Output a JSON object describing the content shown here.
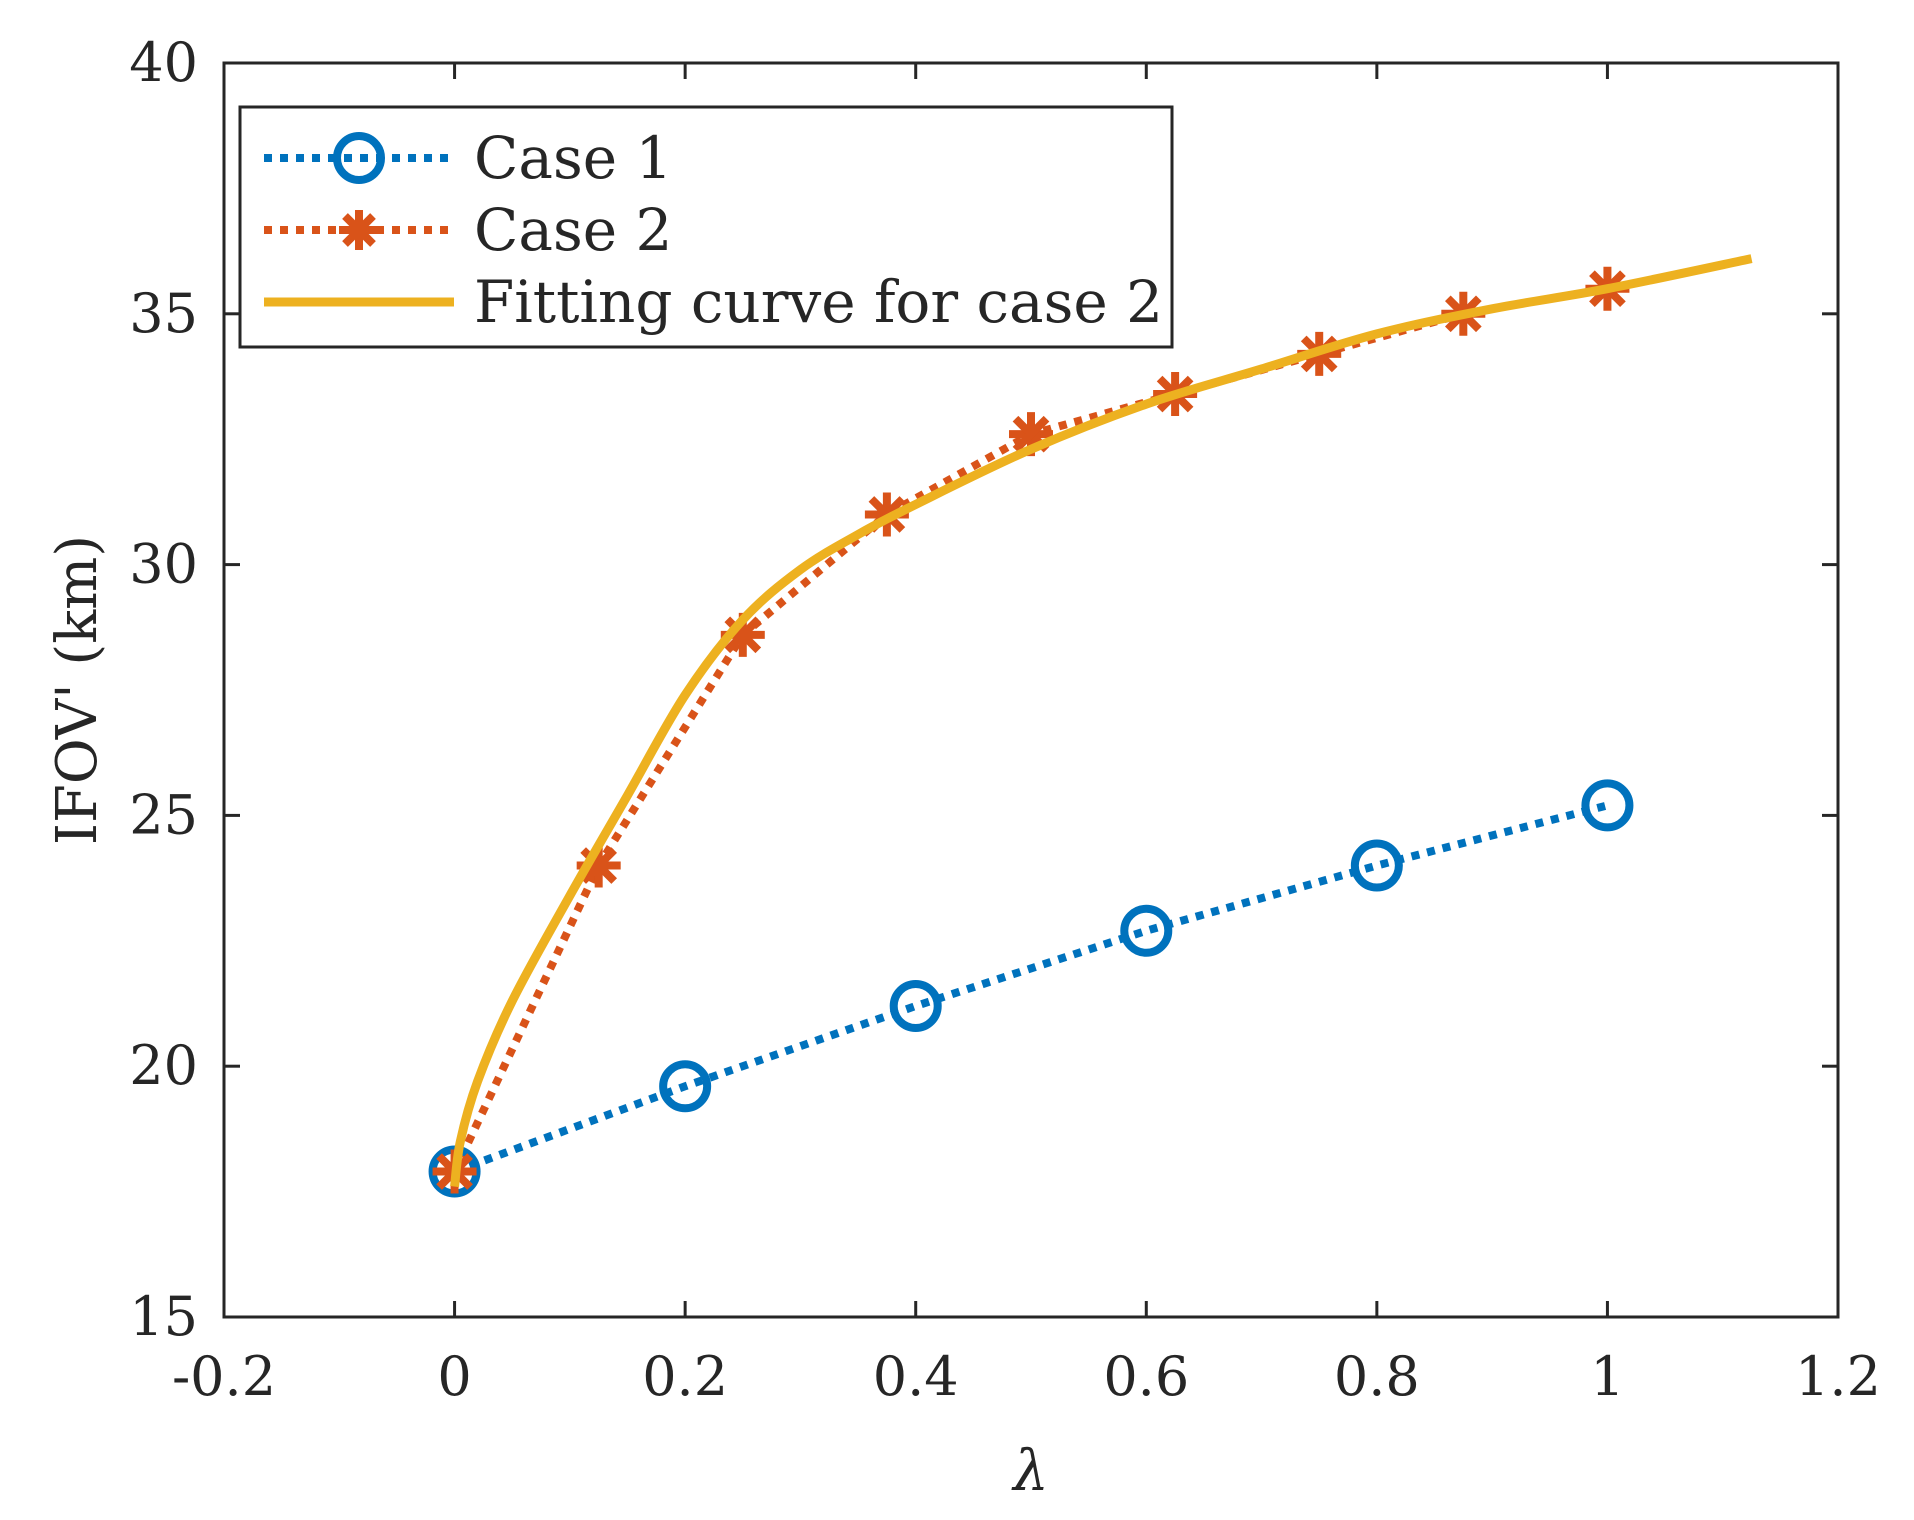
{
  "chart_data": {
    "type": "line",
    "title": "",
    "xlabel": "λ",
    "ylabel": "IFOV' (km)",
    "xlim": [
      -0.2,
      1.2
    ],
    "ylim": [
      15,
      40
    ],
    "xticks": [
      -0.2,
      0,
      0.2,
      0.4,
      0.6,
      0.8,
      1,
      1.2
    ],
    "xtick_labels": [
      "-0.2",
      "0",
      "0.2",
      "0.4",
      "0.6",
      "0.8",
      "1",
      "1.2"
    ],
    "yticks": [
      15,
      20,
      25,
      30,
      35,
      40
    ],
    "ytick_labels": [
      "15",
      "20",
      "25",
      "30",
      "35",
      "40"
    ],
    "grid": false,
    "legend_position": "top-left",
    "series": [
      {
        "name": "Case 1",
        "style": "dotted",
        "marker": "circle",
        "color": "#0072BD",
        "x": [
          0,
          0.2,
          0.4,
          0.6,
          0.8,
          1
        ],
        "y": [
          17.9,
          19.6,
          21.2,
          22.7,
          24.0,
          25.2
        ]
      },
      {
        "name": "Case 2",
        "style": "dotted",
        "marker": "asterisk",
        "color": "#D95319",
        "x": [
          0,
          0.125,
          0.25,
          0.375,
          0.5,
          0.625,
          0.75,
          0.875,
          1
        ],
        "y": [
          17.9,
          24.0,
          28.6,
          31.0,
          32.6,
          33.4,
          34.2,
          35.0,
          35.5
        ]
      },
      {
        "name": "Fitting curve for case 2",
        "style": "solid",
        "marker": "none",
        "color": "#EDB120",
        "x": [
          0,
          0.005,
          0.02,
          0.05,
          0.1,
          0.15,
          0.2,
          0.25,
          0.3,
          0.35,
          0.4,
          0.5,
          0.6,
          0.7,
          0.8,
          0.9,
          1.0,
          1.125
        ],
        "y": [
          17.6,
          18.5,
          19.7,
          21.3,
          23.4,
          25.4,
          27.4,
          28.9,
          29.9,
          30.6,
          31.2,
          32.3,
          33.2,
          33.9,
          34.6,
          35.1,
          35.5,
          36.1
        ]
      }
    ]
  }
}
